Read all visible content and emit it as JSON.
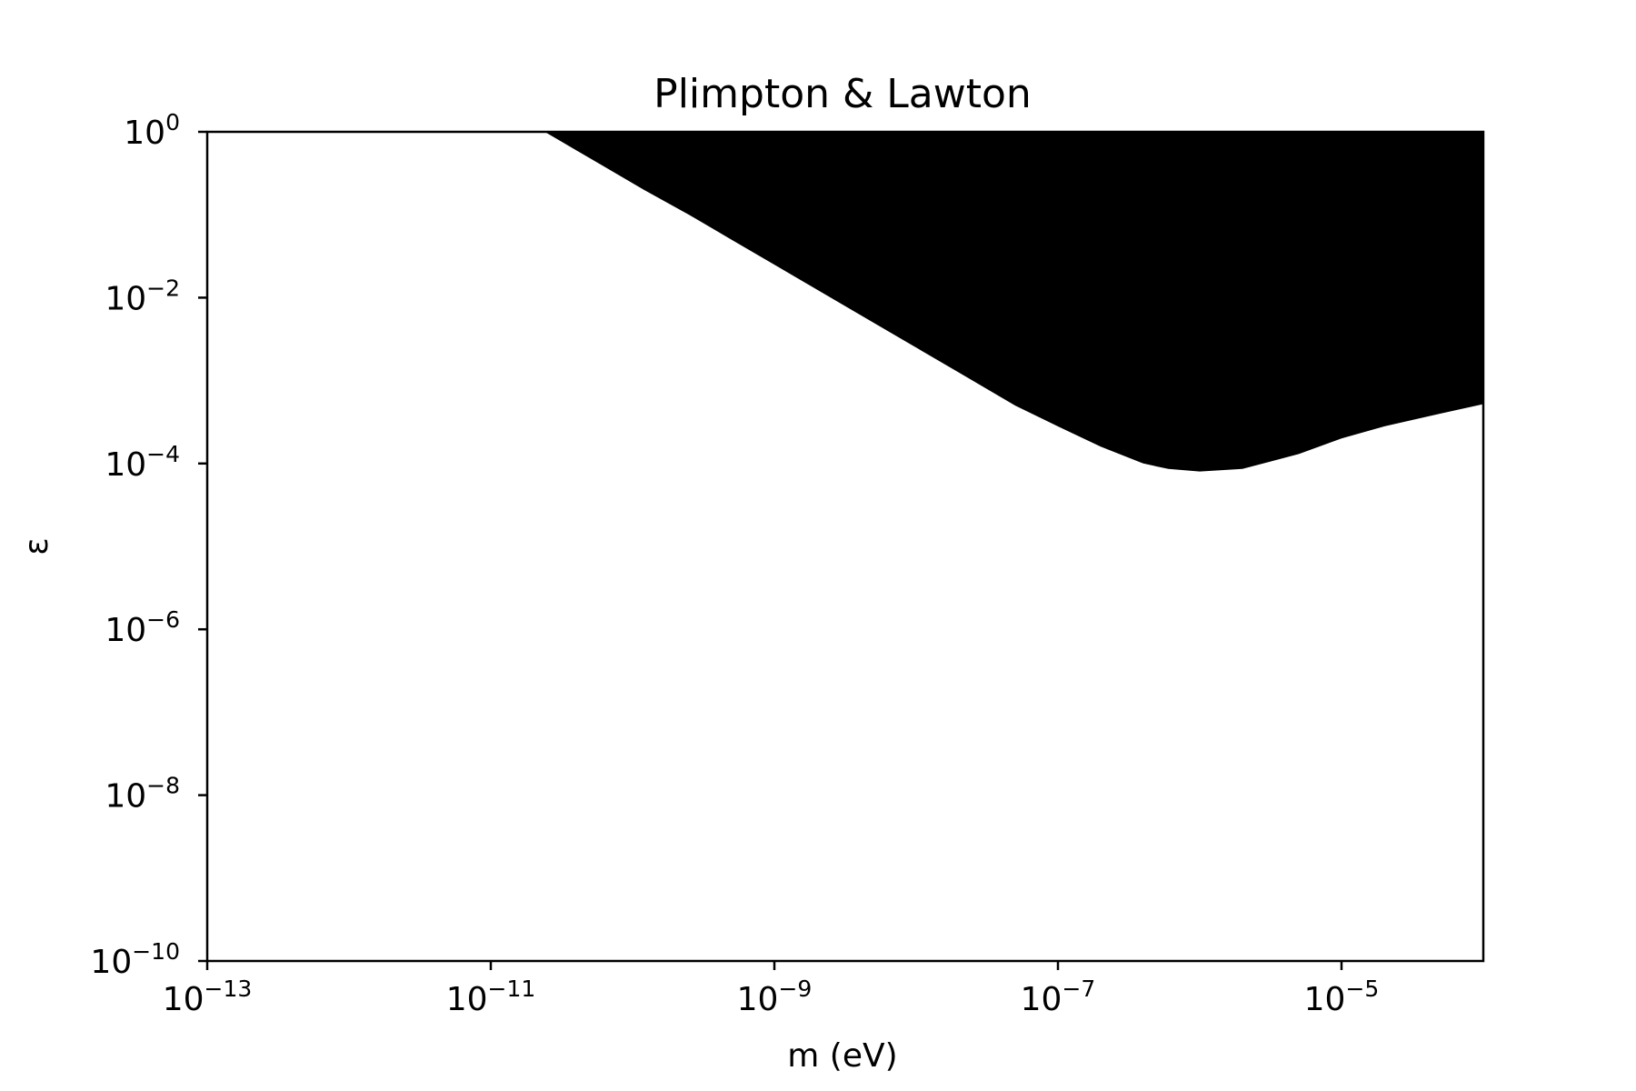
{
  "chart_data": {
    "type": "area",
    "title": "Plimpton & Lawton",
    "xlabel": "m (eV)",
    "ylabel": "ε",
    "xscale": "log",
    "yscale": "log",
    "xlim": [
      1e-13,
      0.0001
    ],
    "ylim": [
      1e-10,
      1
    ],
    "grid": false,
    "legend": "none",
    "fill_color": "#000000",
    "x_ticks": [
      {
        "value": 1e-13,
        "base": "10",
        "exp": "−13"
      },
      {
        "value": 1e-11,
        "base": "10",
        "exp": "−11"
      },
      {
        "value": 1e-09,
        "base": "10",
        "exp": "−9"
      },
      {
        "value": 1e-07,
        "base": "10",
        "exp": "−7"
      },
      {
        "value": 1e-05,
        "base": "10",
        "exp": "−5"
      }
    ],
    "y_ticks": [
      {
        "value": 1,
        "base": "10",
        "exp": "0"
      },
      {
        "value": 0.01,
        "base": "10",
        "exp": "−2"
      },
      {
        "value": 0.0001,
        "base": "10",
        "exp": "−4"
      },
      {
        "value": 1e-06,
        "base": "10",
        "exp": "−6"
      },
      {
        "value": 1e-08,
        "base": "10",
        "exp": "−8"
      },
      {
        "value": 1e-10,
        "base": "10",
        "exp": "−10"
      }
    ],
    "excluded_region": {
      "description": "region above boundary is excluded",
      "boundary": [
        {
          "m": 2.4e-11,
          "eps": 1.0
        },
        {
          "m": 3.2e-11,
          "eps": 0.75
        },
        {
          "m": 6e-11,
          "eps": 0.4
        },
        {
          "m": 1.2e-10,
          "eps": 0.2
        },
        {
          "m": 2.5e-10,
          "eps": 0.1
        },
        {
          "m": 5e-10,
          "eps": 0.05
        },
        {
          "m": 1e-09,
          "eps": 0.025
        },
        {
          "m": 2e-09,
          "eps": 0.0125
        },
        {
          "m": 5e-09,
          "eps": 0.005
        },
        {
          "m": 1e-08,
          "eps": 0.0025
        },
        {
          "m": 2e-08,
          "eps": 0.00125
        },
        {
          "m": 5e-08,
          "eps": 0.0005
        },
        {
          "m": 1e-07,
          "eps": 0.00028
        },
        {
          "m": 2e-07,
          "eps": 0.00016
        },
        {
          "m": 4e-07,
          "eps": 0.0001
        },
        {
          "m": 6e-07,
          "eps": 8.6e-05
        },
        {
          "m": 1e-06,
          "eps": 8e-05
        },
        {
          "m": 2e-06,
          "eps": 8.6e-05
        },
        {
          "m": 5e-06,
          "eps": 0.00013
        },
        {
          "m": 1e-05,
          "eps": 0.0002
        },
        {
          "m": 2e-05,
          "eps": 0.00028
        },
        {
          "m": 5e-05,
          "eps": 0.0004
        },
        {
          "m": 0.0001,
          "eps": 0.00052
        }
      ]
    }
  }
}
